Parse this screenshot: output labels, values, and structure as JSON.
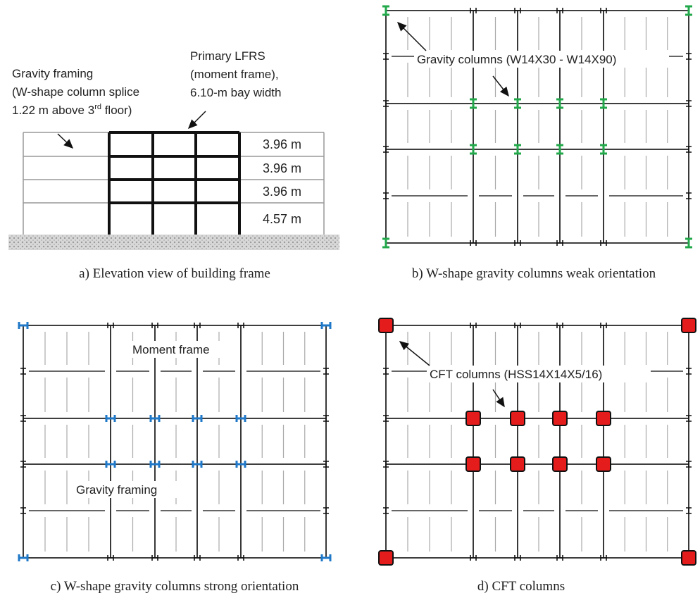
{
  "panels": [
    {
      "caption": "a) Elevation view of building frame",
      "gravity_note": [
        "Gravity framing",
        "(W-shape column splice",
        "1.22 m above 3",
        "rd",
        " floor)"
      ],
      "lfrs_note": [
        "Primary LFRS",
        "(moment frame),",
        "6.10-m bay width"
      ],
      "story_heights": [
        "3.96 m",
        "3.96 m",
        "3.96 m",
        "4.57 m"
      ]
    },
    {
      "caption": "b) W-shape gravity columns weak orientation",
      "note": "Gravity columns (W14X30 - W14X90)"
    },
    {
      "caption": "c) W-shape gravity columns strong orientation",
      "moment_label": "Moment frame",
      "gravity_label": "Gravity framing"
    },
    {
      "caption": "d) CFT columns",
      "note": "CFT columns (HSS14X14X5/16)"
    }
  ]
}
